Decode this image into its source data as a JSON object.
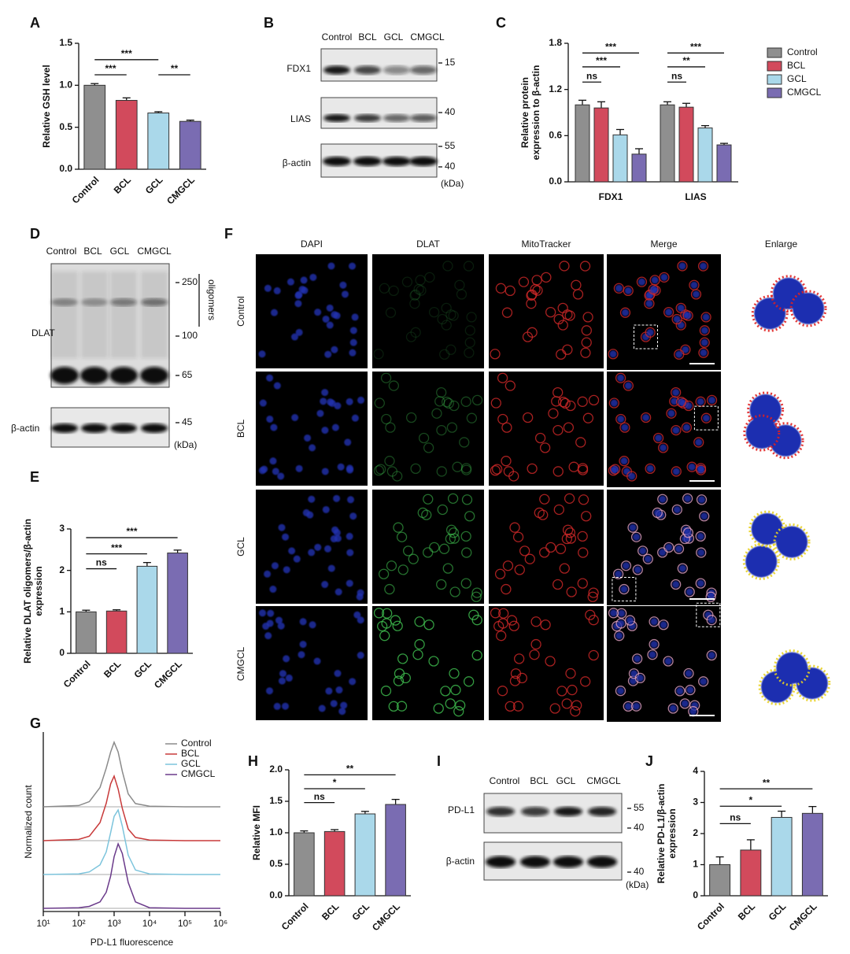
{
  "panel_labels": [
    "A",
    "B",
    "C",
    "D",
    "E",
    "F",
    "G",
    "H",
    "I",
    "J"
  ],
  "chart_data": [
    {
      "type": "bar",
      "ylabel": "Relative GSH level",
      "categories": [
        "Control",
        "BCL",
        "GCL",
        "CMGCL"
      ],
      "values": [
        1.0,
        0.82,
        0.67,
        0.57
      ],
      "errors": [
        0.02,
        0.03,
        0.015,
        0.015
      ],
      "colors": [
        "#8f8f8f",
        "#d24a5c",
        "#aad8ea",
        "#7a6cb2"
      ],
      "ylim": [
        0,
        1.5
      ],
      "yticks": [
        {
          "value": 0,
          "label": "0.0"
        },
        {
          "value": 0.5,
          "label": "0.5"
        },
        {
          "value": 1,
          "label": "1.0"
        },
        {
          "value": 1.5,
          "label": "1.5"
        }
      ],
      "annotations": [
        "***",
        "***",
        "**"
      ]
    },
    {
      "type": "grouped_bar",
      "ylabel": [
        "Relative protein",
        "expression to β-actin"
      ],
      "categories": [
        "FDX1",
        "LIAS"
      ],
      "series": [
        {
          "name": "Control",
          "color": "#8f8f8f",
          "values": [
            1.0,
            1.0
          ],
          "errors": [
            0.06,
            0.04
          ]
        },
        {
          "name": "BCL",
          "color": "#d24a5c",
          "values": [
            0.96,
            0.97
          ],
          "errors": [
            0.08,
            0.05
          ]
        },
        {
          "name": "GCL",
          "color": "#aad8ea",
          "values": [
            0.61,
            0.7
          ],
          "errors": [
            0.07,
            0.03
          ]
        },
        {
          "name": "CMGCL",
          "color": "#7a6cb2",
          "values": [
            0.36,
            0.48
          ],
          "errors": [
            0.07,
            0.02
          ]
        }
      ],
      "ylim": [
        0,
        1.8
      ],
      "yticks": [
        {
          "value": 0,
          "label": "0.0"
        },
        {
          "value": 0.6,
          "label": "0.6"
        },
        {
          "value": 1.2,
          "label": "1.2"
        },
        {
          "value": 1.8,
          "label": "1.8"
        }
      ],
      "legend": "right",
      "annotations": [
        [
          "ns",
          "***",
          "***"
        ],
        [
          "ns",
          "**",
          "***"
        ]
      ]
    },
    {
      "type": "bar",
      "ylabel": [
        "Relative DLAT oligomers/β-actin",
        "expression"
      ],
      "categories": [
        "Control",
        "BCL",
        "GCL",
        "CMGCL"
      ],
      "values": [
        1.0,
        1.02,
        2.1,
        2.42
      ],
      "errors": [
        0.04,
        0.03,
        0.09,
        0.07
      ],
      "colors": [
        "#8f8f8f",
        "#d24a5c",
        "#aad8ea",
        "#7a6cb2"
      ],
      "ylim": [
        0,
        3
      ],
      "yticks": [
        0,
        1,
        2,
        3
      ],
      "annotations": [
        "ns",
        "***",
        "***"
      ]
    },
    {
      "type": "density",
      "ylabel": "Normalized count",
      "xlabel": "PD-L1 fluorescence",
      "xscale": "log",
      "x": [
        10,
        100,
        200,
        400,
        600,
        800,
        1000,
        1300,
        1700,
        2500,
        4000,
        10000,
        100000,
        1000000
      ],
      "series": [
        {
          "name": "Control",
          "color": "#8a8a8a",
          "values": [
            0,
            2,
            8,
            30,
            60,
            85,
            100,
            85,
            55,
            20,
            5,
            1,
            0,
            0
          ]
        },
        {
          "name": "BCL",
          "color": "#c83a3a",
          "values": [
            0,
            2,
            7,
            28,
            58,
            88,
            100,
            80,
            50,
            18,
            5,
            1,
            0,
            0
          ]
        },
        {
          "name": "GCL",
          "color": "#7cc4dc",
          "values": [
            0,
            1,
            4,
            15,
            35,
            65,
            90,
            100,
            75,
            30,
            7,
            1,
            0,
            0
          ]
        },
        {
          "name": "CMGCL",
          "color": "#6a3a8a",
          "values": [
            0,
            1,
            3,
            10,
            25,
            50,
            80,
            100,
            85,
            40,
            10,
            1,
            0,
            0
          ]
        }
      ],
      "xlim": [
        10,
        1000000
      ],
      "xticks": [
        {
          "value": 10,
          "label": "10¹"
        },
        {
          "value": 100,
          "label": "10²"
        },
        {
          "value": 1000,
          "label": "10³"
        },
        {
          "value": 10000,
          "label": "10⁴"
        },
        {
          "value": 100000,
          "label": "10⁵"
        },
        {
          "value": 1000000,
          "label": "10⁶"
        }
      ],
      "legend": "upper right"
    },
    {
      "type": "bar",
      "ylabel": "Relative MFI",
      "categories": [
        "Control",
        "BCL",
        "GCL",
        "CMGCL"
      ],
      "values": [
        1.0,
        1.02,
        1.3,
        1.45
      ],
      "errors": [
        0.03,
        0.03,
        0.04,
        0.08
      ],
      "colors": [
        "#8f8f8f",
        "#d24a5c",
        "#aad8ea",
        "#7a6cb2"
      ],
      "ylim": [
        0,
        2
      ],
      "yticks": [
        {
          "value": 0,
          "label": "0.0"
        },
        {
          "value": 0.5,
          "label": "0.5"
        },
        {
          "value": 1,
          "label": "1.0"
        },
        {
          "value": 1.5,
          "label": "1.5"
        },
        {
          "value": 2,
          "label": "2.0"
        }
      ],
      "annotations": [
        "ns",
        "*",
        "**"
      ]
    },
    {
      "type": "bar",
      "ylabel": [
        "Relative PD-L1/β-actin",
        "expression"
      ],
      "categories": [
        "Control",
        "BCL",
        "GCL",
        "CMGCL"
      ],
      "values": [
        1.0,
        1.47,
        2.52,
        2.65
      ],
      "errors": [
        0.25,
        0.33,
        0.2,
        0.22
      ],
      "colors": [
        "#8f8f8f",
        "#d24a5c",
        "#aad8ea",
        "#7a6cb2"
      ],
      "ylim": [
        0,
        4
      ],
      "yticks": [
        0,
        1,
        2,
        3,
        4
      ],
      "annotations": [
        "ns",
        "*",
        "**"
      ]
    }
  ],
  "blot_B": {
    "lanes": [
      "Control",
      "BCL",
      "GCL",
      "CMGCL"
    ],
    "rows": [
      "FDX1",
      "LIAS",
      "β-actin"
    ],
    "markers": [
      "15",
      "40",
      "55",
      "40"
    ],
    "unit": "(kDa)"
  },
  "blot_D": {
    "lanes": [
      "Control",
      "BCL",
      "GCL",
      "CMGCL"
    ],
    "rows": [
      "DLAT",
      "β-actin"
    ],
    "markers": [
      "250",
      "100",
      "65",
      "45"
    ],
    "oligomers": "oligomers",
    "unit": "(kDa)"
  },
  "blot_I": {
    "lanes": [
      "Control",
      "BCL",
      "GCL",
      "CMGCL"
    ],
    "rows": [
      "PD-L1",
      "β-actin"
    ],
    "markers": [
      "55",
      "40",
      "40"
    ],
    "unit": "(kDa)"
  },
  "microscopy_F": {
    "columns": [
      "DAPI",
      "DLAT",
      "MitoTracker",
      "Merge",
      "Enlarge"
    ],
    "rows": [
      "Control",
      "BCL",
      "GCL",
      "CMGCL"
    ]
  }
}
